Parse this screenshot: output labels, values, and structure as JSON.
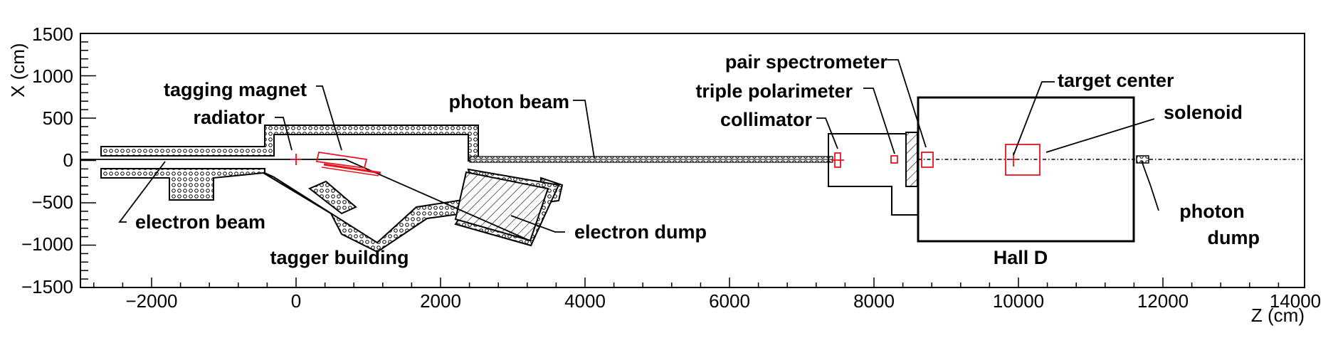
{
  "axes": {
    "x_title": "Z (cm)",
    "y_title": "X (cm)",
    "x_ticks": [
      "−2000",
      "0",
      "2000",
      "4000",
      "6000",
      "8000",
      "10000",
      "12000",
      "14000"
    ],
    "y_ticks": [
      "1500",
      "1000",
      "500",
      "0",
      "−500",
      "−1000",
      "−1500"
    ]
  },
  "labels": {
    "tagging_magnet": "tagging magnet",
    "radiator": "radiator",
    "photon_beam": "photon beam",
    "pair_spectrometer": "pair spectrometer",
    "triple_polarimeter": "triple polarimeter",
    "collimator": "collimator",
    "target_center": "target center",
    "solenoid": "solenoid",
    "electron_beam": "electron beam",
    "electron_dump": "electron dump",
    "tagger_building": "tagger building",
    "hall_d": "Hall D",
    "photon_dump_1": "photon",
    "photon_dump_2": "dump"
  },
  "colors": {
    "component": "#e8121f",
    "outline": "#000000"
  }
}
